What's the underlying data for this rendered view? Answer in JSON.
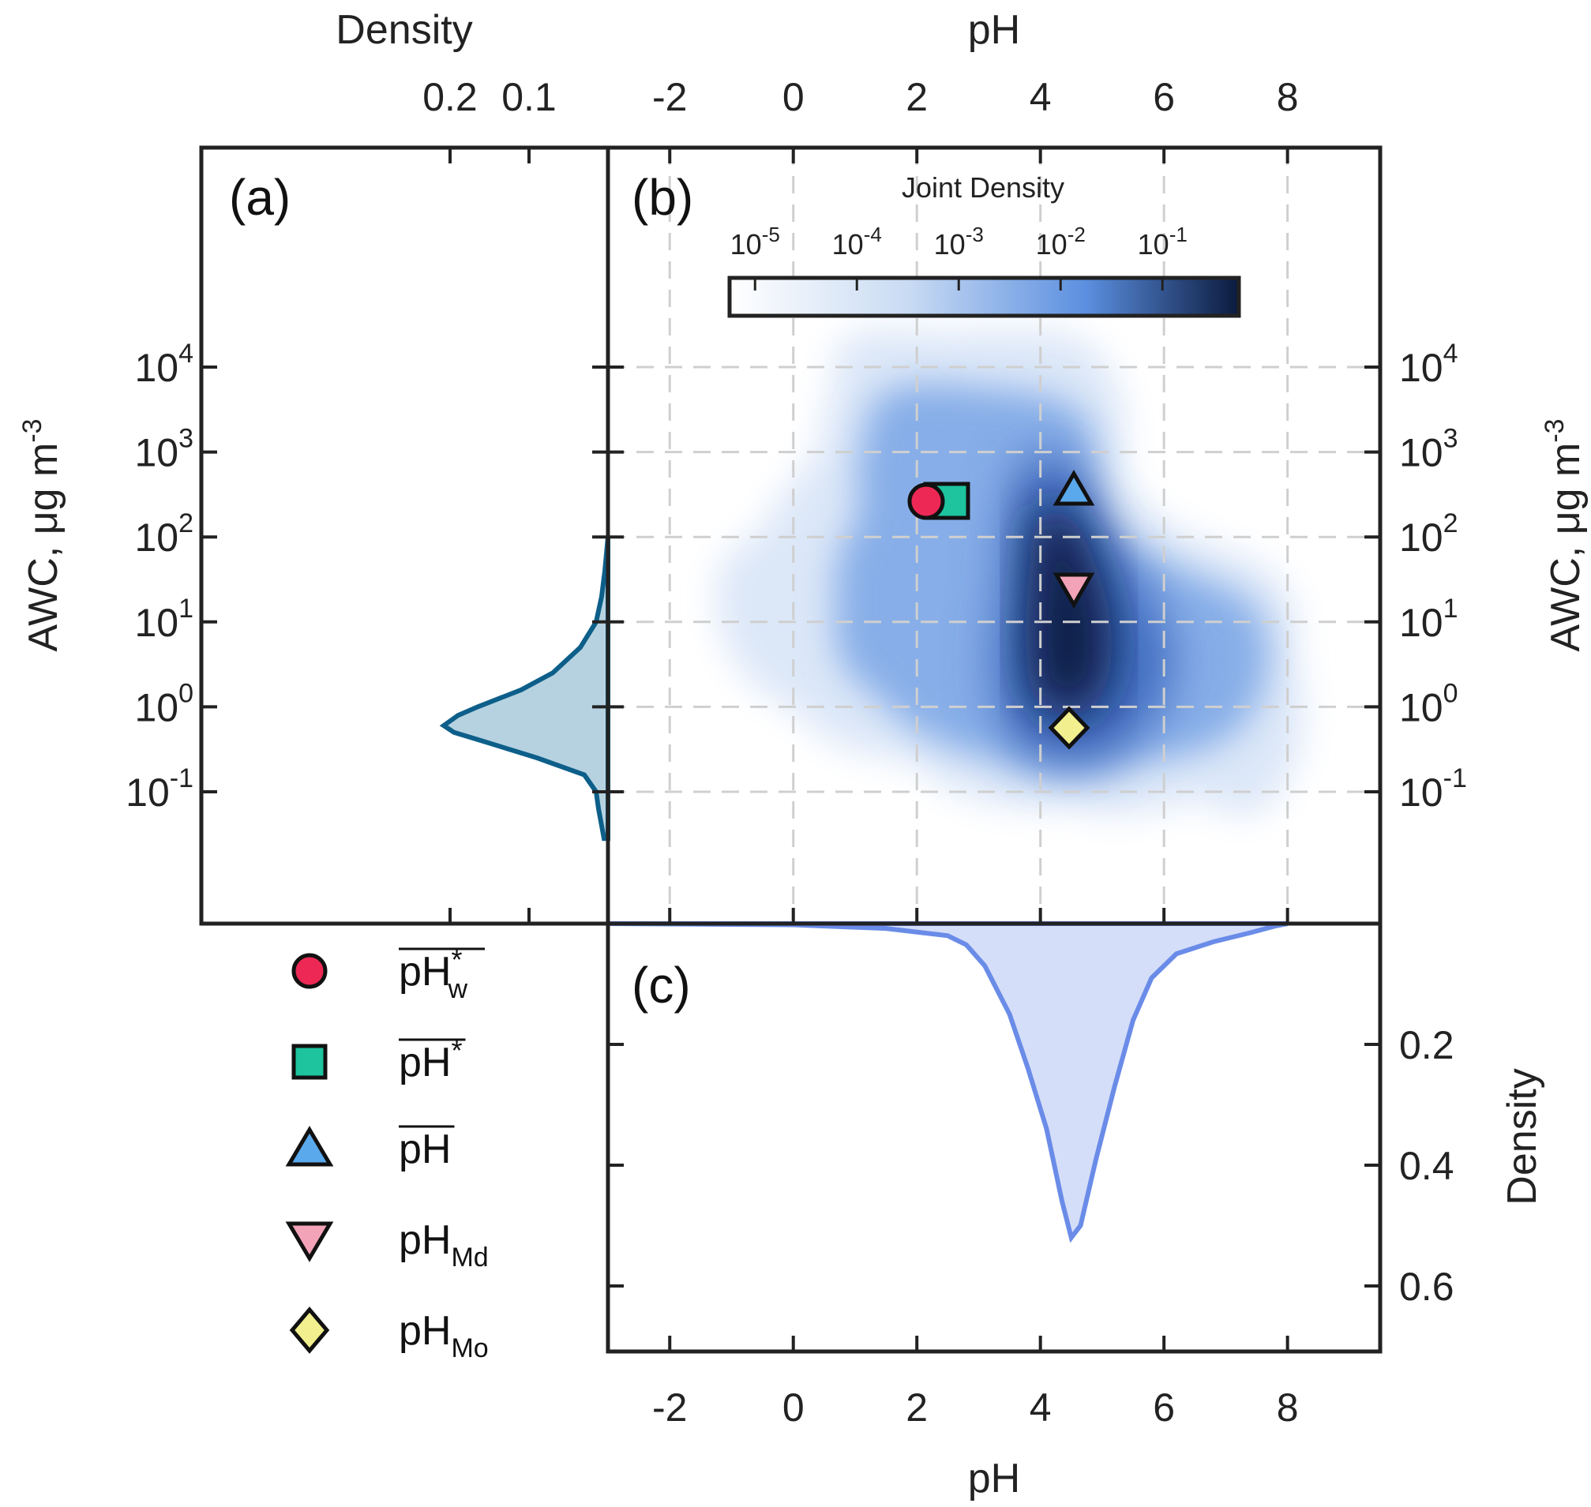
{
  "chart_data": [
    {
      "panel": "(a)",
      "type": "area",
      "orientation": "vertical-density",
      "xlabel": "Density",
      "ylabel": "AWC, μg m-3",
      "x_ticks": [
        "0.2",
        "0.1"
      ],
      "y_ticks": [
        "10-1",
        "100",
        "101",
        "102",
        "103",
        "104"
      ],
      "y_scale": "log",
      "color": "#0d5f8a",
      "fill": "#b6d2e0",
      "points": [
        {
          "log_awc": -1.55,
          "density": 0.005
        },
        {
          "log_awc": -1.4,
          "density": 0.008
        },
        {
          "log_awc": -1.2,
          "density": 0.012
        },
        {
          "log_awc": -1.0,
          "density": 0.015
        },
        {
          "log_awc": -0.8,
          "density": 0.03
        },
        {
          "log_awc": -0.6,
          "density": 0.09
        },
        {
          "log_awc": -0.4,
          "density": 0.16
        },
        {
          "log_awc": -0.3,
          "density": 0.195
        },
        {
          "log_awc": -0.22,
          "density": 0.208
        },
        {
          "log_awc": -0.1,
          "density": 0.19
        },
        {
          "log_awc": 0.0,
          "density": 0.165
        },
        {
          "log_awc": 0.2,
          "density": 0.11
        },
        {
          "log_awc": 0.4,
          "density": 0.07
        },
        {
          "log_awc": 0.7,
          "density": 0.035
        },
        {
          "log_awc": 1.0,
          "density": 0.015
        },
        {
          "log_awc": 1.3,
          "density": 0.008
        },
        {
          "log_awc": 1.6,
          "density": 0.004
        },
        {
          "log_awc": 2.0,
          "density": 0.0
        }
      ]
    },
    {
      "panel": "(b)",
      "type": "heatmap",
      "xlabel": "pH",
      "ylabel": "AWC, μg m-3",
      "x_ticks": [
        "-2",
        "0",
        "2",
        "4",
        "6",
        "8"
      ],
      "y_ticks": [
        "10-1",
        "100",
        "101",
        "102",
        "103",
        "104"
      ],
      "xlim": [
        -3,
        9.5
      ],
      "y_scale": "log",
      "colorbar": {
        "title": "Joint Density",
        "ticks": [
          "10-5",
          "10-4",
          "10-3",
          "10-2",
          "10-1"
        ],
        "colors": [
          "#ffffff",
          "#c9dbf3",
          "#5b8fe0",
          "#0b1a3d"
        ]
      },
      "markers": [
        {
          "legend": "pH*w",
          "symbol": "circle",
          "color": "#ee2855",
          "pH": 2.2,
          "awc": 55
        },
        {
          "legend": "pH*",
          "symbol": "square",
          "color": "#1dc49e",
          "pH": 2.6,
          "awc": 55
        },
        {
          "legend": "pH",
          "symbol": "triangle-up",
          "color": "#5aa9ec",
          "pH": 4.6,
          "awc": 55
        },
        {
          "legend": "pHMd",
          "symbol": "triangle-down",
          "color": "#f2a3b8",
          "pH": 4.6,
          "awc": 7
        },
        {
          "legend": "pHMo",
          "symbol": "diamond",
          "color": "#f2ef8e",
          "pH": 4.5,
          "awc": 0.5
        }
      ]
    },
    {
      "panel": "(c)",
      "type": "area",
      "xlabel": "pH",
      "ylabel": "Density",
      "x_ticks": [
        "-2",
        "0",
        "2",
        "4",
        "6",
        "8"
      ],
      "y_ticks": [
        "0.2",
        "0.4",
        "0.6"
      ],
      "color": "#6a8ce8",
      "fill": "#d5def8",
      "points": [
        {
          "pH": -3.0,
          "density": 0.0
        },
        {
          "pH": 0.0,
          "density": 0.002
        },
        {
          "pH": 1.5,
          "density": 0.008
        },
        {
          "pH": 2.5,
          "density": 0.02
        },
        {
          "pH": 2.8,
          "density": 0.035
        },
        {
          "pH": 3.1,
          "density": 0.07
        },
        {
          "pH": 3.5,
          "density": 0.15
        },
        {
          "pH": 3.8,
          "density": 0.24
        },
        {
          "pH": 4.1,
          "density": 0.34
        },
        {
          "pH": 4.35,
          "density": 0.46
        },
        {
          "pH": 4.5,
          "density": 0.52
        },
        {
          "pH": 4.65,
          "density": 0.5
        },
        {
          "pH": 4.9,
          "density": 0.39
        },
        {
          "pH": 5.2,
          "density": 0.27
        },
        {
          "pH": 5.5,
          "density": 0.16
        },
        {
          "pH": 5.8,
          "density": 0.09
        },
        {
          "pH": 6.2,
          "density": 0.05
        },
        {
          "pH": 6.8,
          "density": 0.03
        },
        {
          "pH": 7.4,
          "density": 0.015
        },
        {
          "pH": 7.8,
          "density": 0.004
        },
        {
          "pH": 8.0,
          "density": 0.0
        }
      ]
    }
  ],
  "legend": [
    {
      "main": "pH",
      "sup": "*",
      "sub": "w",
      "overline": true
    },
    {
      "main": "pH",
      "sup": "*",
      "sub": "",
      "overline": true
    },
    {
      "main": "pH",
      "sup": "",
      "sub": "",
      "overline": true
    },
    {
      "main": "pH",
      "sup": "",
      "sub": "Md",
      "overline": false
    },
    {
      "main": "pH",
      "sup": "",
      "sub": "Mo",
      "overline": false
    }
  ]
}
